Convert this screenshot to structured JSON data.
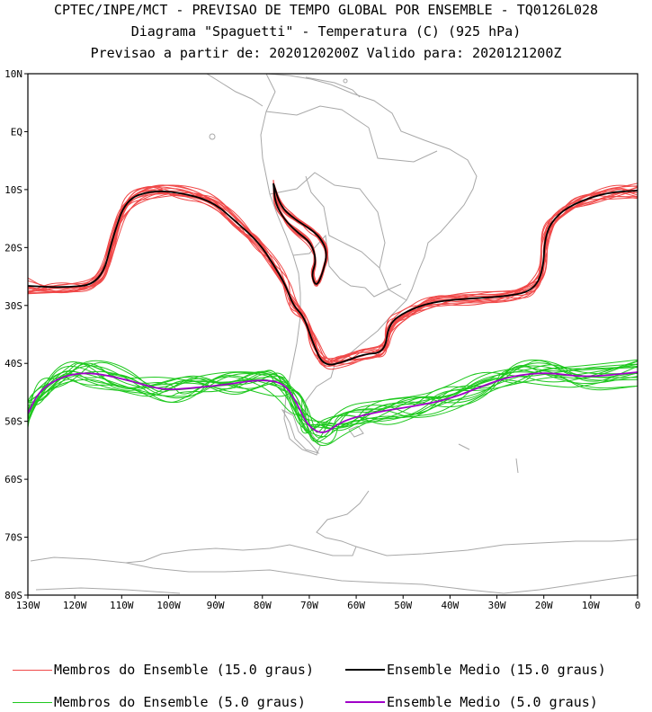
{
  "header": {
    "line1": "CPTEC/INPE/MCT - PREVISAO DE TEMPO GLOBAL POR ENSEMBLE - TQ0126L028",
    "line2": "Diagrama \"Spaguetti\" - Temperatura (C) (925 hPa)",
    "line3": "Previsao a partir de: 2020120200Z  Valido para: 2020121200Z"
  },
  "map": {
    "lat_labels": [
      "10N",
      "EQ",
      "10S",
      "20S",
      "30S",
      "40S",
      "50S",
      "60S",
      "70S",
      "80S"
    ],
    "lat_values": [
      10,
      0,
      -10,
      -20,
      -30,
      -40,
      -50,
      -60,
      -70,
      -80
    ],
    "lon_labels": [
      "130W",
      "120W",
      "110W",
      "100W",
      "90W",
      "80W",
      "70W",
      "60W",
      "50W",
      "40W",
      "30W",
      "20W",
      "10W",
      "0"
    ],
    "lon_values": [
      -130,
      -120,
      -110,
      -100,
      -90,
      -80,
      -70,
      -60,
      -50,
      -40,
      -30,
      -20,
      -10,
      0
    ],
    "lon_range": [
      -130,
      0
    ],
    "lat_range": [
      -80,
      10
    ]
  },
  "colors": {
    "members_15": "#f04848",
    "mean_15": "#000000",
    "members_5": "#1ec81e",
    "mean_5": "#a000c8",
    "coast": "#a8a8a8"
  },
  "legend": {
    "members_15": "Membros do Ensemble (15.0 graus)",
    "mean_15": "Ensemble Medio (15.0 graus)",
    "members_5": "Membros do Ensemble (5.0 graus)",
    "mean_5": "Ensemble Medio (5.0 graus)"
  }
}
